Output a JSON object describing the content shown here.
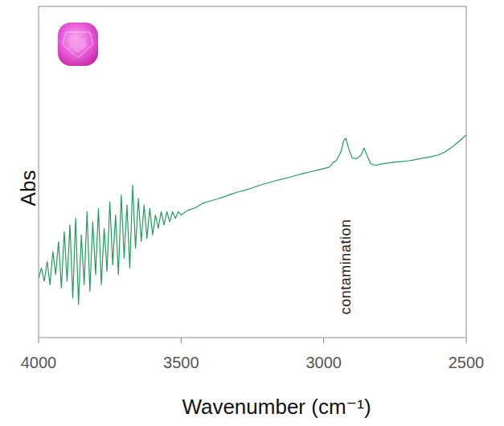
{
  "chart_data": {
    "type": "line",
    "x_label": "Wavenumber (cm⁻¹)",
    "y_label": "Abs",
    "xlim": [
      4000,
      2500
    ],
    "xticks": [
      4000,
      3500,
      3000,
      2500
    ],
    "ylim": [
      0,
      10
    ],
    "tick_labels": "x",
    "grid": false,
    "color": "#1f9d5a",
    "annotations": [
      {
        "text": "contamination",
        "x": 2925,
        "y": 0.7
      }
    ],
    "x": [
      4000,
      3990,
      3980,
      3970,
      3960,
      3950,
      3940,
      3930,
      3920,
      3910,
      3900,
      3890,
      3880,
      3870,
      3860,
      3850,
      3840,
      3830,
      3820,
      3810,
      3800,
      3790,
      3780,
      3770,
      3760,
      3750,
      3740,
      3730,
      3720,
      3710,
      3700,
      3690,
      3680,
      3670,
      3660,
      3650,
      3640,
      3630,
      3620,
      3610,
      3600,
      3590,
      3580,
      3570,
      3560,
      3550,
      3540,
      3530,
      3520,
      3510,
      3500,
      3475,
      3450,
      3425,
      3400,
      3375,
      3350,
      3325,
      3300,
      3275,
      3250,
      3225,
      3200,
      3175,
      3150,
      3125,
      3100,
      3075,
      3050,
      3025,
      3000,
      2980,
      2965,
      2955,
      2940,
      2930,
      2922,
      2912,
      2900,
      2885,
      2870,
      2858,
      2848,
      2835,
      2820,
      2800,
      2775,
      2750,
      2725,
      2700,
      2675,
      2650,
      2625,
      2600,
      2575,
      2550,
      2525,
      2500
    ],
    "values": [
      1.8,
      2.1,
      1.7,
      2.3,
      1.6,
      2.6,
      1.9,
      2.9,
      1.5,
      3.2,
      1.7,
      3.4,
      1.2,
      3.6,
      1.0,
      3.1,
      1.6,
      3.8,
      1.4,
      3.5,
      1.9,
      3.9,
      1.6,
      3.3,
      2.0,
      4.1,
      2.2,
      3.7,
      1.9,
      4.3,
      2.4,
      4.0,
      2.1,
      4.6,
      2.7,
      4.2,
      2.9,
      4.0,
      3.0,
      3.9,
      3.1,
      3.7,
      3.3,
      3.8,
      3.4,
      3.8,
      3.5,
      3.8,
      3.6,
      3.8,
      3.7,
      3.85,
      3.92,
      4.05,
      4.12,
      4.18,
      4.25,
      4.33,
      4.4,
      4.45,
      4.52,
      4.6,
      4.66,
      4.72,
      4.78,
      4.83,
      4.89,
      4.95,
      5.0,
      5.05,
      5.1,
      5.15,
      5.3,
      5.35,
      5.6,
      5.95,
      6.02,
      5.7,
      5.42,
      5.4,
      5.5,
      5.72,
      5.5,
      5.25,
      5.2,
      5.24,
      5.27,
      5.3,
      5.32,
      5.34,
      5.38,
      5.42,
      5.46,
      5.51,
      5.6,
      5.75,
      5.93,
      6.12
    ]
  }
}
